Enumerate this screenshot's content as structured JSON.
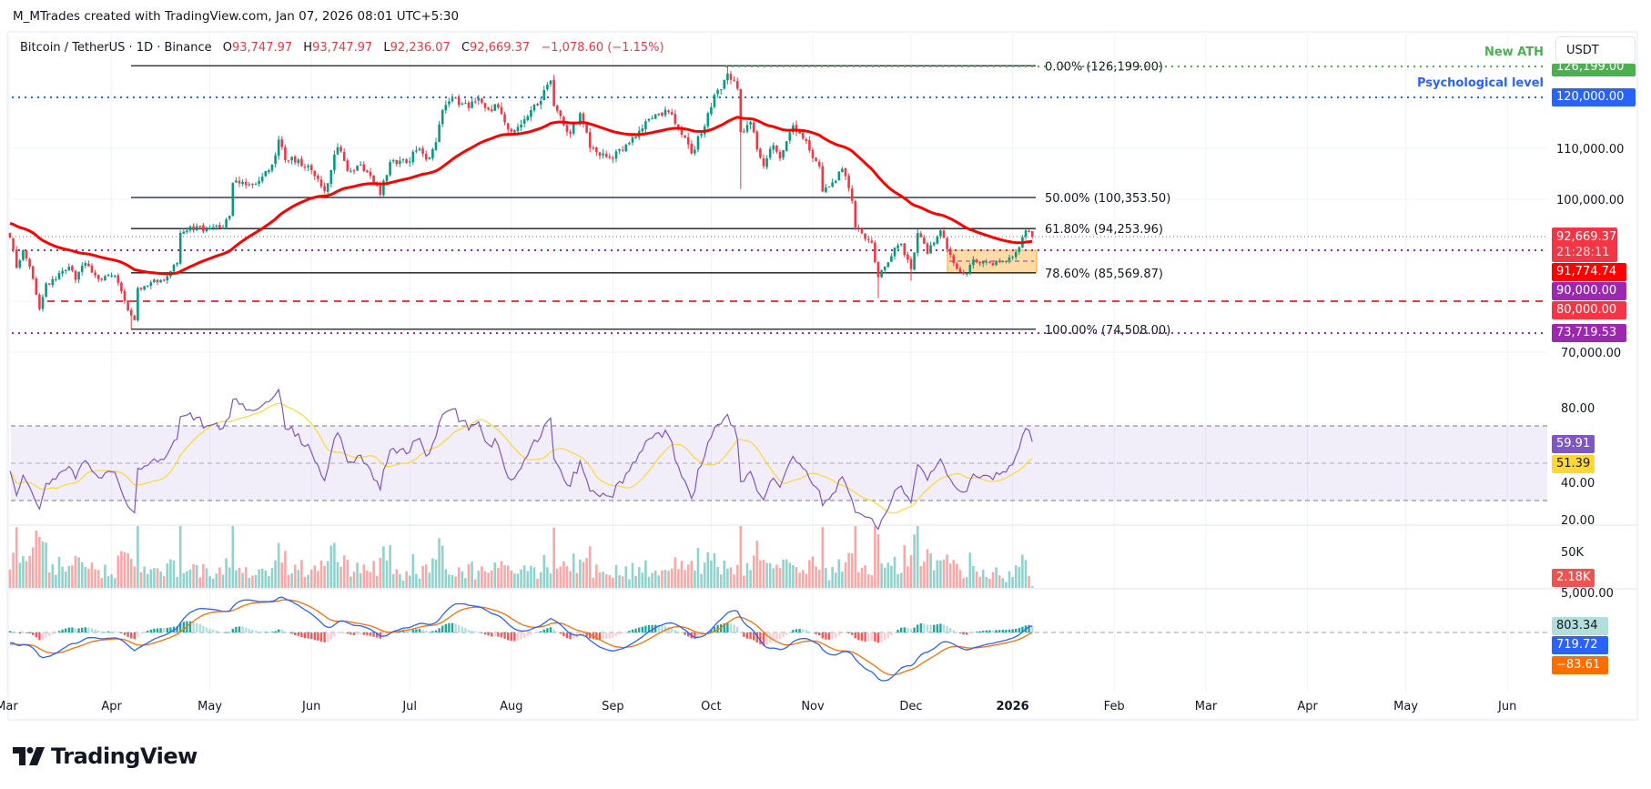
{
  "credit": "M_MTrades created with TradingView.com, Jan 07, 2026 08:01 UTC+5:30",
  "legend": {
    "symbol": "Bitcoin / TetherUS · 1D · Binance",
    "o_label": "O",
    "o": "93,747.97",
    "h_label": "H",
    "h": "93,747.97",
    "l_label": "L",
    "l": "92,236.07",
    "c_label": "C",
    "c": "92,669.37",
    "change": "−1,078.60 (−1.15%)"
  },
  "currency_button": "USDT",
  "annotations": {
    "ath": "New ATH",
    "psych": "Psychological level"
  },
  "price_tags": {
    "ath": "126,199.00",
    "psych": "120,000.00",
    "last": "92,669.37",
    "countdown": "21:28:11",
    "ma": "91,774.74",
    "level90": "90,000.00",
    "level80": "80,000.00",
    "level73": "73,719.53",
    "rsi": "59.91",
    "rsi_ma": "51.39",
    "volume": "2.18K",
    "macd_hist": "803.34",
    "macd": "719.72",
    "macd_signal": "−83.61"
  },
  "price_axis": [
    "110,000.00",
    "100,000.00",
    "70,000.00"
  ],
  "rsi_axis": [
    "80.00",
    "40.00",
    "20.00"
  ],
  "volume_axis": [
    "50K"
  ],
  "macd_axis": [
    "5,000.00"
  ],
  "time_axis": [
    "Mar",
    "Apr",
    "May",
    "Jun",
    "Jul",
    "Aug",
    "Sep",
    "Oct",
    "Nov",
    "Dec",
    "2026",
    "Feb",
    "Mar",
    "Apr",
    "May",
    "Jun"
  ],
  "fib_labels": [
    "0.00% (126,199.00)",
    "50.00% (100,353.50)",
    "61.80% (94,253.96)",
    "78.60% (85,569.87)",
    "100.00% (74,508.00)"
  ],
  "logo_text": "TradingView",
  "colors": {
    "up": "#089981",
    "down": "#f23645",
    "ma": "#ff0000",
    "ath": "#4caf50",
    "psych": "#2962ff",
    "level90": "#9c27b0",
    "level80": "#f23645",
    "rsi": "#7e57c2",
    "rsi_ma": "#fdd835",
    "macd": "#2962ff",
    "macd_signal": "#ff6d00",
    "box": "#ffcc80"
  },
  "chart_data": {
    "type": "candlestick",
    "symbol": "BTCUSDT",
    "timeframe": "1D",
    "price_range": [
      66000,
      131000
    ],
    "levels": {
      "ath": 126199,
      "psychological": 120000,
      "support_90k": 90000,
      "support_80k": 80000,
      "low": 73719.53
    },
    "fibonacci": [
      {
        "ratio": 0.0,
        "price": 126199.0
      },
      {
        "ratio": 0.5,
        "price": 100353.5
      },
      {
        "ratio": 0.618,
        "price": 94253.96
      },
      {
        "ratio": 0.786,
        "price": 85569.87
      },
      {
        "ratio": 1.0,
        "price": 74508.0
      }
    ],
    "consolidation_box": {
      "from": "2025-12-14",
      "to": "2026-01-07",
      "low": 85200,
      "high": 90000
    },
    "moving_average": {
      "last": 91774.74
    },
    "last_candle": {
      "date": "2026-01-07",
      "open": 93747.97,
      "high": 93747.97,
      "low": 92236.07,
      "close": 92669.37
    },
    "wick_extremes": [
      [
        "2025-04-07",
        "low",
        74508
      ],
      [
        "2025-08-14",
        "high",
        124400
      ],
      [
        "2025-10-06",
        "high",
        126199
      ],
      [
        "2025-10-10",
        "low",
        102000
      ],
      [
        "2025-11-21",
        "low",
        80600
      ],
      [
        "2025-12-01",
        "low",
        84000
      ]
    ],
    "closes": [
      [
        "2025-03-01",
        92500
      ],
      [
        "2025-03-03",
        86500
      ],
      [
        "2025-03-05",
        90000
      ],
      [
        "2025-03-07",
        86800
      ],
      [
        "2025-03-10",
        78500
      ],
      [
        "2025-03-12",
        83500
      ],
      [
        "2025-03-15",
        84300
      ],
      [
        "2025-03-19",
        86800
      ],
      [
        "2025-03-21",
        84200
      ],
      [
        "2025-03-24",
        87500
      ],
      [
        "2025-03-28",
        84300
      ],
      [
        "2025-04-02",
        85000
      ],
      [
        "2025-04-06",
        78200
      ],
      [
        "2025-04-08",
        76300
      ],
      [
        "2025-04-09",
        82600
      ],
      [
        "2025-04-13",
        83700
      ],
      [
        "2025-04-18",
        84900
      ],
      [
        "2025-04-21",
        87500
      ],
      [
        "2025-04-22",
        93400
      ],
      [
        "2025-04-25",
        94700
      ],
      [
        "2025-04-30",
        94200
      ],
      [
        "2025-05-04",
        94300
      ],
      [
        "2025-05-07",
        96800
      ],
      [
        "2025-05-08",
        103200
      ],
      [
        "2025-05-12",
        102800
      ],
      [
        "2025-05-16",
        103600
      ],
      [
        "2025-05-20",
        106800
      ],
      [
        "2025-05-22",
        111700
      ],
      [
        "2025-05-24",
        107700
      ],
      [
        "2025-05-28",
        107800
      ],
      [
        "2025-06-01",
        105700
      ],
      [
        "2025-06-05",
        101600
      ],
      [
        "2025-06-09",
        110200
      ],
      [
        "2025-06-12",
        105600
      ],
      [
        "2025-06-16",
        106800
      ],
      [
        "2025-06-19",
        104600
      ],
      [
        "2025-06-22",
        100900
      ],
      [
        "2025-06-25",
        107300
      ],
      [
        "2025-06-30",
        107100
      ],
      [
        "2025-07-03",
        109600
      ],
      [
        "2025-07-07",
        108200
      ],
      [
        "2025-07-09",
        111200
      ],
      [
        "2025-07-11",
        117500
      ],
      [
        "2025-07-14",
        119800
      ],
      [
        "2025-07-16",
        118500
      ],
      [
        "2025-07-19",
        117900
      ],
      [
        "2025-07-22",
        119900
      ],
      [
        "2025-07-25",
        117600
      ],
      [
        "2025-07-28",
        118000
      ],
      [
        "2025-08-01",
        113300
      ],
      [
        "2025-08-03",
        114200
      ],
      [
        "2025-08-07",
        117500
      ],
      [
        "2025-08-10",
        119300
      ],
      [
        "2025-08-13",
        123300
      ],
      [
        "2025-08-14",
        118300
      ],
      [
        "2025-08-19",
        112900
      ],
      [
        "2025-08-22",
        116900
      ],
      [
        "2025-08-25",
        110100
      ],
      [
        "2025-08-31",
        108200
      ],
      [
        "2025-09-05",
        110700
      ],
      [
        "2025-09-10",
        113900
      ],
      [
        "2025-09-13",
        115900
      ],
      [
        "2025-09-18",
        117100
      ],
      [
        "2025-09-22",
        112700
      ],
      [
        "2025-09-25",
        109000
      ],
      [
        "2025-09-29",
        114300
      ],
      [
        "2025-10-02",
        120500
      ],
      [
        "2025-10-05",
        123400
      ],
      [
        "2025-10-06",
        124700
      ],
      [
        "2025-10-08",
        123300
      ],
      [
        "2025-10-09",
        121700
      ],
      [
        "2025-10-10",
        113200
      ],
      [
        "2025-10-13",
        115200
      ],
      [
        "2025-10-16",
        108200
      ],
      [
        "2025-10-17",
        106500
      ],
      [
        "2025-10-20",
        110600
      ],
      [
        "2025-10-22",
        108000
      ],
      [
        "2025-10-26",
        114500
      ],
      [
        "2025-10-28",
        112900
      ],
      [
        "2025-10-31",
        109600
      ],
      [
        "2025-11-03",
        106500
      ],
      [
        "2025-11-04",
        101500
      ],
      [
        "2025-11-07",
        103300
      ],
      [
        "2025-11-10",
        106000
      ],
      [
        "2025-11-13",
        99700
      ],
      [
        "2025-11-14",
        94500
      ],
      [
        "2025-11-17",
        92200
      ],
      [
        "2025-11-19",
        91500
      ],
      [
        "2025-11-21",
        84700
      ],
      [
        "2025-11-23",
        86800
      ],
      [
        "2025-11-26",
        90500
      ],
      [
        "2025-11-28",
        91300
      ],
      [
        "2025-12-01",
        86300
      ],
      [
        "2025-12-03",
        93400
      ],
      [
        "2025-12-06",
        89300
      ],
      [
        "2025-12-09",
        92700
      ],
      [
        "2025-12-10",
        93900
      ],
      [
        "2025-12-12",
        90200
      ],
      [
        "2025-12-15",
        86400
      ],
      [
        "2025-12-18",
        85500
      ],
      [
        "2025-12-20",
        88200
      ],
      [
        "2025-12-25",
        87600
      ],
      [
        "2025-12-30",
        87900
      ],
      [
        "2026-01-01",
        88700
      ],
      [
        "2026-01-03",
        90600
      ],
      [
        "2026-01-05",
        93900
      ],
      [
        "2026-01-06",
        93748
      ],
      [
        "2026-01-07",
        92669.37
      ]
    ],
    "rsi": {
      "last": 59.91,
      "ma_last": 51.39,
      "range": [
        15,
        85
      ],
      "bands": [
        70,
        50,
        30
      ]
    },
    "volume": {
      "last": 2180,
      "range": [
        0,
        85000
      ]
    },
    "macd": {
      "histogram_last": 803.34,
      "macd_last": 719.72,
      "signal_last": -83.61,
      "range": [
        -6500,
        5000
      ]
    }
  }
}
